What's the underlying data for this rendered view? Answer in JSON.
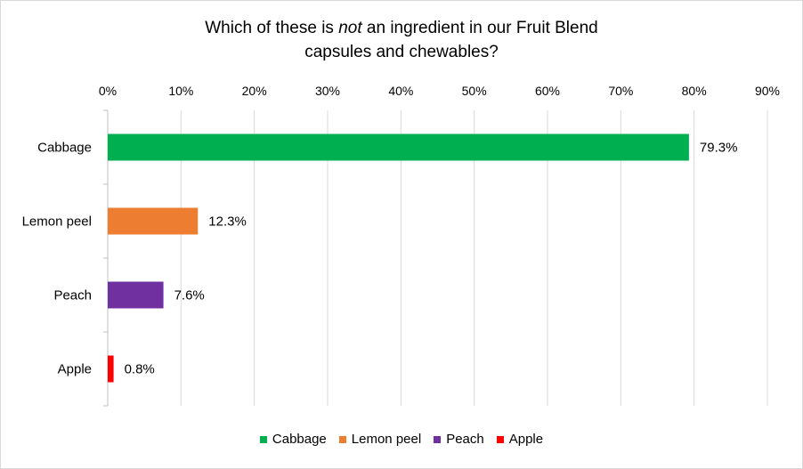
{
  "chart_data": {
    "type": "bar",
    "orientation": "horizontal",
    "title_parts": [
      "Which of these is ",
      "not",
      " an ingredient in our Fruit Blend",
      "capsules and chewables?"
    ],
    "categories": [
      "Cabbage",
      "Lemon peel",
      "Peach",
      "Apple"
    ],
    "values": [
      79.3,
      12.3,
      7.6,
      0.8
    ],
    "data_labels": [
      "79.3%",
      "12.3%",
      "7.6%",
      "0.8%"
    ],
    "colors": [
      "#00b050",
      "#ed7d31",
      "#7030a0",
      "#ff0000"
    ],
    "xlim": [
      0,
      90
    ],
    "x_ticks": [
      0,
      10,
      20,
      30,
      40,
      50,
      60,
      70,
      80,
      90
    ],
    "x_tick_labels": [
      "0%",
      "10%",
      "20%",
      "30%",
      "40%",
      "50%",
      "60%",
      "70%",
      "80%",
      "90%"
    ],
    "x_axis_position": "top",
    "grid": true,
    "legend": [
      "Cabbage",
      "Lemon peel",
      "Peach",
      "Apple"
    ],
    "legend_position": "bottom"
  }
}
